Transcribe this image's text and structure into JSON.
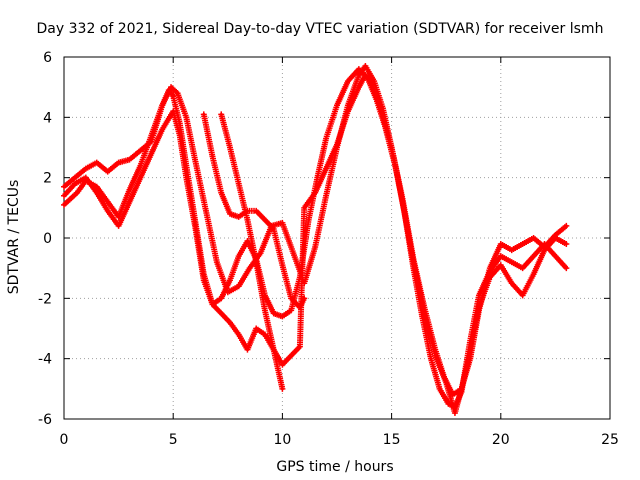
{
  "chart_data": {
    "type": "scatter",
    "title": "Day 332 of 2021, Sidereal Day-to-day VTEC variation (SDTVAR) for receiver lsmh",
    "xlabel": "GPS time / hours",
    "ylabel": "SDTVAR / TECUs",
    "xlim": [
      0,
      25
    ],
    "ylim": [
      -6,
      6
    ],
    "x_ticks": [
      "0",
      "5",
      "10",
      "15",
      "20",
      "25"
    ],
    "y_ticks": [
      "-6",
      "-4",
      "-2",
      "0",
      "2",
      "4",
      "6"
    ],
    "grid": true,
    "marker": "+",
    "color": "#ff0000",
    "series": [
      {
        "x": [
          0.0,
          0.6,
          1.0,
          1.5,
          2.0,
          2.5,
          3.0,
          3.5,
          4.0,
          4.5,
          4.8,
          5.0,
          5.3,
          5.6,
          6.0,
          6.4,
          6.8,
          7.2,
          7.6,
          8.0,
          8.4,
          8.8,
          9.2,
          9.6,
          10.0,
          10.4,
          10.8,
          11.2,
          11.6,
          12.0,
          12.5,
          13.0,
          13.5,
          13.9,
          14.3,
          14.7,
          15.2,
          15.6,
          16.0,
          16.4,
          16.8,
          17.2,
          17.6,
          17.9,
          18.2,
          18.6,
          19.0,
          19.5,
          20.0,
          20.5,
          21.0,
          21.5,
          22.0,
          22.5,
          23.0
        ],
        "y": [
          1.1,
          1.5,
          1.9,
          1.7,
          1.2,
          0.7,
          1.6,
          2.4,
          3.4,
          4.4,
          4.9,
          4.7,
          3.8,
          2.4,
          0.6,
          -1.2,
          -2.2,
          -2.0,
          -1.4,
          -0.6,
          -0.1,
          -0.7,
          -1.9,
          -2.5,
          -2.6,
          -2.4,
          -1.3,
          0.6,
          2.0,
          3.3,
          4.4,
          5.2,
          5.6,
          5.3,
          4.6,
          3.7,
          2.3,
          0.8,
          -1.0,
          -2.6,
          -4.0,
          -5.0,
          -5.5,
          -5.6,
          -5.1,
          -3.4,
          -1.9,
          -1.1,
          -0.6,
          -0.8,
          -1.0,
          -0.6,
          -0.2,
          -0.6,
          -1.0
        ]
      },
      {
        "x": [
          0.0,
          0.5,
          1.0,
          1.5,
          2.0,
          2.5,
          3.0,
          3.5,
          4.0,
          4.5,
          4.9,
          5.2,
          5.6,
          6.0,
          6.5,
          7.0,
          7.5,
          8.0,
          8.5,
          9.0,
          9.5,
          10.0,
          10.5,
          11.0,
          11.5,
          12.0,
          12.5,
          13.0,
          13.5,
          13.8,
          14.2,
          14.6,
          15.0,
          15.5,
          16.0,
          16.5,
          17.0,
          17.4,
          17.8,
          18.2,
          18.6,
          19.0,
          19.5,
          20.0,
          20.5,
          21.0,
          21.5,
          22.0,
          22.5,
          23.0
        ],
        "y": [
          1.7,
          2.0,
          2.3,
          2.5,
          2.2,
          2.5,
          2.6,
          2.9,
          3.2,
          4.4,
          5.0,
          4.8,
          4.0,
          2.6,
          0.9,
          -0.8,
          -1.8,
          -1.6,
          -1.0,
          -0.5,
          0.4,
          0.5,
          -0.5,
          -1.5,
          -0.3,
          1.4,
          3.0,
          4.4,
          5.4,
          5.7,
          5.2,
          4.3,
          3.0,
          1.3,
          -0.7,
          -2.3,
          -3.7,
          -4.6,
          -5.2,
          -5.0,
          -4.0,
          -2.4,
          -1.0,
          -0.2,
          -0.4,
          -0.2,
          0.0,
          -0.3,
          0.1,
          0.4
        ]
      },
      {
        "x": [
          0.0,
          0.5,
          1.0,
          1.5,
          2.0,
          2.5,
          3.0,
          3.5,
          4.0,
          4.5,
          5.0,
          5.3,
          5.6,
          6.0,
          6.4,
          6.8,
          7.2,
          7.6,
          8.0,
          8.4,
          8.8,
          9.2,
          9.6,
          10.0,
          10.4,
          10.8,
          11.0,
          11.5,
          12.0,
          12.5,
          13.0,
          13.5,
          13.8,
          14.1,
          14.5,
          15.0,
          15.5,
          16.0,
          16.5,
          17.0,
          17.5,
          17.9,
          18.2,
          18.6,
          19.0,
          19.5,
          20.0,
          20.5,
          21.0,
          21.5,
          22.0,
          22.5,
          23.0
        ],
        "y": [
          1.4,
          1.8,
          2.0,
          1.5,
          0.9,
          0.4,
          1.2,
          2.0,
          2.8,
          3.6,
          4.2,
          3.4,
          2.0,
          0.4,
          -1.4,
          -2.2,
          -2.5,
          -2.8,
          -3.2,
          -3.7,
          -3.0,
          -3.2,
          -3.7,
          -4.2,
          -3.9,
          -3.6,
          1.0,
          1.5,
          2.3,
          3.1,
          4.2,
          5.0,
          5.4,
          5.1,
          4.3,
          3.0,
          1.2,
          -0.8,
          -2.5,
          -3.9,
          -4.8,
          -5.8,
          -5.0,
          -3.8,
          -2.3,
          -1.3,
          -0.9,
          -1.5,
          -1.9,
          -1.2,
          -0.4,
          0.0,
          -0.2
        ]
      },
      {
        "x": [
          6.4,
          6.8,
          7.2,
          7.6,
          8.0,
          8.4,
          8.8,
          9.2,
          9.6,
          10.0,
          10.4,
          10.8,
          11.0
        ],
        "y": [
          4.1,
          2.7,
          1.5,
          0.8,
          0.7,
          0.9,
          0.9,
          0.6,
          0.3,
          -0.9,
          -2.0,
          -2.3,
          -2.0
        ]
      },
      {
        "x": [
          7.2,
          7.6,
          8.0,
          8.4,
          8.8,
          9.2,
          9.6,
          10.0
        ],
        "y": [
          4.1,
          3.0,
          1.8,
          0.6,
          -0.8,
          -2.4,
          -3.7,
          -5.0
        ]
      }
    ]
  }
}
